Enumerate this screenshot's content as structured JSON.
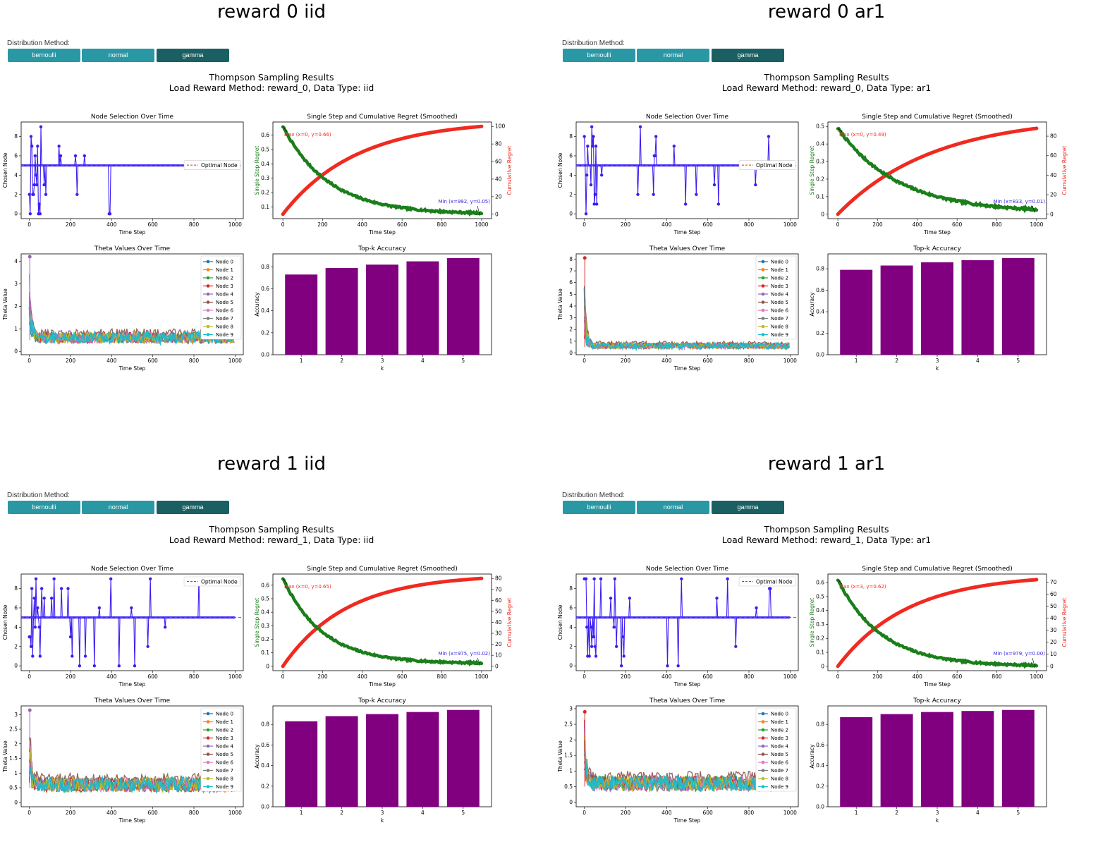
{
  "common": {
    "distribution_label": "Distribution Method:",
    "buttons": [
      "bernoulli",
      "normal",
      "gamma"
    ],
    "main_title": "Thompson Sampling Results",
    "colors": {
      "button": "#2a97a5",
      "button_active": "#1a5f62",
      "bar": "#800080",
      "node_line": "#3b1ff0",
      "regret_single": "#1a7f1a",
      "regret_cum": "#f02a20",
      "optimal": "#e03030"
    },
    "node_colors": [
      "#1f77b4",
      "#ff7f0e",
      "#2ca02c",
      "#d62728",
      "#9467bd",
      "#8c564b",
      "#e377c2",
      "#7f7f7f",
      "#bcbd22",
      "#17becf"
    ]
  },
  "quadrants": [
    {
      "title": "reward 0 iid",
      "subtitle": "Load Reward Method: reward_0, Data Type: iid",
      "chart_data": [
        {
          "type": "line",
          "title": "Node Selection Over Time",
          "xlabel": "Time Step",
          "ylabel": "Chosen Node",
          "xlim": [
            0,
            1000
          ],
          "ylim": [
            0,
            9
          ],
          "yticks": [
            0,
            2,
            4,
            6,
            8
          ],
          "xticks": [
            0,
            200,
            400,
            600,
            800,
            1000
          ],
          "optimal_node": 5,
          "legend": "Optimal Node",
          "legend_position": "center-right",
          "early_spike_until": 600
        },
        {
          "type": "line",
          "title": "Single Step and Cumulative Regret (Smoothed)",
          "xlabel": "Time Step",
          "ylabel": "Single Step Regret",
          "y2label": "Cumulative Regret",
          "xlim": [
            0,
            1000
          ],
          "ylim": [
            0.05,
            0.66
          ],
          "yticks": [
            0.1,
            0.2,
            0.3,
            0.4,
            0.5,
            0.6
          ],
          "y2lim": [
            0,
            100
          ],
          "y2ticks": [
            0,
            20,
            40,
            60,
            80,
            100
          ],
          "xticks": [
            0,
            200,
            400,
            600,
            800,
            1000
          ],
          "single_start": 0.66,
          "single_end": 0.05,
          "decay": 230,
          "cumulative_end": 100,
          "max_annotation": "Max (x=0, y=0.66)",
          "min_annotation": "Min (x=992, y=0.05)"
        },
        {
          "type": "line",
          "title": "Theta Values Over Time",
          "xlabel": "Time Step",
          "ylabel": "Theta Value",
          "xlim": [
            0,
            1000
          ],
          "ylim": [
            0,
            4.2
          ],
          "yticks": [
            0,
            1,
            2,
            3,
            4
          ],
          "xticks": [
            0,
            200,
            400,
            600,
            800,
            1000
          ],
          "peak": 4.2,
          "legend": [
            "Node 0",
            "Node 1",
            "Node 2",
            "Node 3",
            "Node 4",
            "Node 5",
            "Node 6",
            "Node 7",
            "Node 8",
            "Node 9"
          ]
        },
        {
          "type": "bar",
          "title": "Top-k Accuracy",
          "xlabel": "k",
          "ylabel": "Accuracy",
          "categories": [
            "1",
            "2",
            "3",
            "4",
            "5"
          ],
          "values": [
            0.73,
            0.79,
            0.82,
            0.85,
            0.88
          ],
          "ylim": [
            0,
            0.9
          ],
          "yticks": [
            0.0,
            0.2,
            0.4,
            0.6,
            0.8
          ]
        }
      ]
    },
    {
      "title": "reward 0 ar1",
      "subtitle": "Load Reward Method: reward_0, Data Type: ar1",
      "chart_data": [
        {
          "type": "line",
          "title": "Node Selection Over Time",
          "xlabel": "Time Step",
          "ylabel": "Chosen Node",
          "xlim": [
            0,
            1000
          ],
          "ylim": [
            0,
            9
          ],
          "yticks": [
            0,
            2,
            4,
            6,
            8
          ],
          "xticks": [
            0,
            200,
            400,
            600,
            800,
            1000
          ],
          "optimal_node": 5,
          "legend": "Optimal Node",
          "legend_position": "center-right",
          "early_spike_until": 900
        },
        {
          "type": "line",
          "title": "Single Step and Cumulative Regret (Smoothed)",
          "xlabel": "Time Step",
          "ylabel": "Single Step Regret",
          "y2label": "Cumulative Regret",
          "xlim": [
            0,
            1000
          ],
          "ylim": [
            0.0,
            0.5
          ],
          "yticks": [
            0.0,
            0.1,
            0.2,
            0.3,
            0.4,
            0.5
          ],
          "y2lim": [
            0,
            90
          ],
          "y2ticks": [
            0,
            20,
            40,
            60,
            80
          ],
          "xticks": [
            0,
            200,
            400,
            600,
            800,
            1000
          ],
          "single_start": 0.49,
          "single_end": 0.01,
          "decay": 300,
          "cumulative_end": 88,
          "max_annotation": "Max (x=0, y=0.49)",
          "min_annotation": "Min (x=833, y=0.01)"
        },
        {
          "type": "line",
          "title": "Theta Values Over Time",
          "xlabel": "Time Step",
          "ylabel": "Theta Value",
          "xlim": [
            0,
            1000
          ],
          "ylim": [
            0,
            8.2
          ],
          "yticks": [
            0,
            1,
            2,
            3,
            4,
            5,
            6,
            7,
            8
          ],
          "xticks": [
            0,
            200,
            400,
            600,
            800,
            1000
          ],
          "peak": 8.1,
          "legend": [
            "Node 0",
            "Node 1",
            "Node 2",
            "Node 3",
            "Node 4",
            "Node 5",
            "Node 6",
            "Node 7",
            "Node 8",
            "Node 9"
          ]
        },
        {
          "type": "bar",
          "title": "Top-k Accuracy",
          "xlabel": "k",
          "ylabel": "Accuracy",
          "categories": [
            "1",
            "2",
            "3",
            "4",
            "5"
          ],
          "values": [
            0.79,
            0.83,
            0.86,
            0.88,
            0.9
          ],
          "ylim": [
            0,
            0.92
          ],
          "yticks": [
            0.0,
            0.2,
            0.4,
            0.6,
            0.8
          ]
        }
      ]
    },
    {
      "title": "reward 1 iid",
      "subtitle": "Load Reward Method: reward_1, Data Type: iid",
      "chart_data": [
        {
          "type": "line",
          "title": "Node Selection Over Time",
          "xlabel": "Time Step",
          "ylabel": "Chosen Node",
          "xlim": [
            0,
            1000
          ],
          "ylim": [
            0,
            9
          ],
          "yticks": [
            0,
            2,
            4,
            6,
            8
          ],
          "xticks": [
            0,
            200,
            400,
            600,
            800,
            1000
          ],
          "optimal_node": 5,
          "legend": "Optimal Node",
          "legend_position": "top-right",
          "early_spike_until": 850
        },
        {
          "type": "line",
          "title": "Single Step and Cumulative Regret (Smoothed)",
          "xlabel": "Time Step",
          "ylabel": "Single Step Regret",
          "y2label": "Cumulative Regret",
          "xlim": [
            0,
            1000
          ],
          "ylim": [
            0.0,
            0.65
          ],
          "yticks": [
            0.0,
            0.1,
            0.2,
            0.3,
            0.4,
            0.5,
            0.6
          ],
          "y2lim": [
            0,
            80
          ],
          "y2ticks": [
            0,
            10,
            20,
            30,
            40,
            50,
            60,
            70,
            80
          ],
          "xticks": [
            0,
            200,
            400,
            600,
            800,
            1000
          ],
          "single_start": 0.65,
          "single_end": 0.02,
          "decay": 200,
          "cumulative_end": 80,
          "max_annotation": "Max (x=0, y=0.65)",
          "min_annotation": "Min (x=975, y=0.02)"
        },
        {
          "type": "line",
          "title": "Theta Values Over Time",
          "xlabel": "Time Step",
          "ylabel": "Theta Value",
          "xlim": [
            0,
            1000
          ],
          "ylim": [
            0,
            3.2
          ],
          "yticks": [
            0.0,
            0.5,
            1.0,
            1.5,
            2.0,
            2.5,
            3.0
          ],
          "xticks": [
            0,
            200,
            400,
            600,
            800,
            1000
          ],
          "peak": 3.15,
          "legend": [
            "Node 0",
            "Node 1",
            "Node 2",
            "Node 3",
            "Node 4",
            "Node 5",
            "Node 6",
            "Node 7",
            "Node 8",
            "Node 9"
          ]
        },
        {
          "type": "bar",
          "title": "Top-k Accuracy",
          "xlabel": "k",
          "ylabel": "Accuracy",
          "categories": [
            "1",
            "2",
            "3",
            "4",
            "5"
          ],
          "values": [
            0.83,
            0.88,
            0.9,
            0.92,
            0.94
          ],
          "ylim": [
            0,
            0.96
          ],
          "yticks": [
            0.0,
            0.2,
            0.4,
            0.6,
            0.8
          ]
        }
      ]
    },
    {
      "title": "reward 1 ar1",
      "subtitle": "Load Reward Method: reward_1, Data Type: ar1",
      "chart_data": [
        {
          "type": "line",
          "title": "Node Selection Over Time",
          "xlabel": "Time Step",
          "ylabel": "Chosen Node",
          "xlim": [
            0,
            1000
          ],
          "ylim": [
            0,
            9
          ],
          "yticks": [
            0,
            2,
            4,
            6,
            8
          ],
          "xticks": [
            0,
            200,
            400,
            600,
            800,
            1000
          ],
          "optimal_node": 5,
          "legend": "Optimal Node",
          "legend_position": "top-right",
          "early_spike_until": 1000
        },
        {
          "type": "line",
          "title": "Single Step and Cumulative Regret (Smoothed)",
          "xlabel": "Time Step",
          "ylabel": "Single Step Regret",
          "y2label": "Cumulative Regret",
          "xlim": [
            0,
            1000
          ],
          "ylim": [
            0.0,
            0.63
          ],
          "yticks": [
            0.0,
            0.1,
            0.2,
            0.3,
            0.4,
            0.5,
            0.6
          ],
          "y2lim": [
            0,
            73
          ],
          "y2ticks": [
            0,
            10,
            20,
            30,
            40,
            50,
            60,
            70
          ],
          "xticks": [
            0,
            200,
            400,
            600,
            800,
            1000
          ],
          "single_start": 0.62,
          "single_end": 0.0,
          "decay": 220,
          "cumulative_end": 72,
          "max_annotation": "Max (x=3, y=0.62)",
          "min_annotation": "Min (x=979, y=0.00)"
        },
        {
          "type": "line",
          "title": "Theta Values Over Time",
          "xlabel": "Time Step",
          "ylabel": "Theta Value",
          "xlim": [
            0,
            1000
          ],
          "ylim": [
            0,
            3.0
          ],
          "yticks": [
            0.0,
            0.5,
            1.0,
            1.5,
            2.0,
            2.5,
            3.0
          ],
          "xticks": [
            0,
            200,
            400,
            600,
            800,
            1000
          ],
          "peak": 2.9,
          "legend": [
            "Node 0",
            "Node 1",
            "Node 2",
            "Node 3",
            "Node 4",
            "Node 5",
            "Node 6",
            "Node 7",
            "Node 8",
            "Node 9"
          ]
        },
        {
          "type": "bar",
          "title": "Top-k Accuracy",
          "xlabel": "k",
          "ylabel": "Accuracy",
          "categories": [
            "1",
            "2",
            "3",
            "4",
            "5"
          ],
          "values": [
            0.87,
            0.9,
            0.92,
            0.93,
            0.94
          ],
          "ylim": [
            0,
            0.96
          ],
          "yticks": [
            0.0,
            0.2,
            0.4,
            0.6,
            0.8
          ]
        }
      ]
    }
  ]
}
